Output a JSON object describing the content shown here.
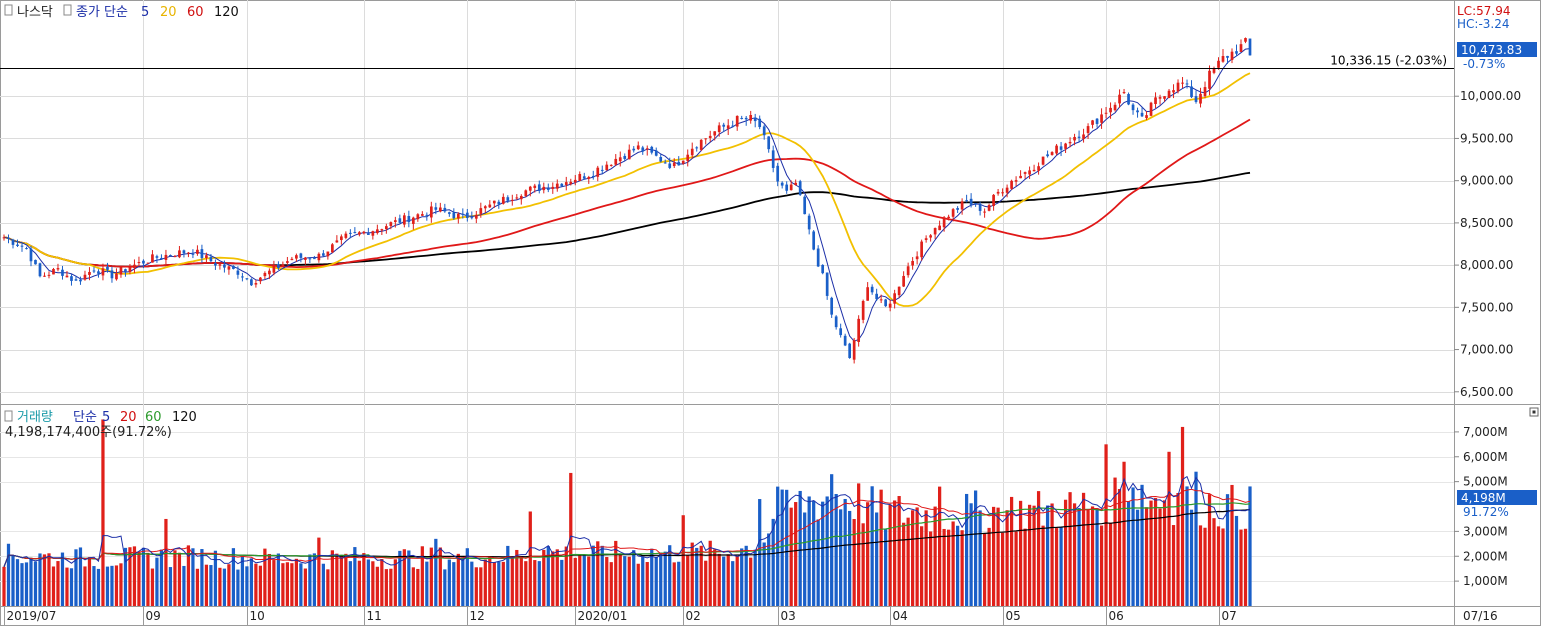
{
  "legend_price": {
    "name": "나스닥",
    "series_type": "종가 단순",
    "ma5": "5",
    "ma20": "20",
    "ma60": "60",
    "ma120": "120"
  },
  "legend_volume": {
    "name": "거래량",
    "series_type": "단순",
    "ma5": "5",
    "ma20": "20",
    "ma60": "60",
    "ma120": "120",
    "current": "4,198,174,400주(91.72%)"
  },
  "right_info": {
    "lc": "LC:57.94",
    "hc": "HC:-3.24",
    "last_price": "10,473.83",
    "last_change": "-0.73%",
    "last_volume": "4,198M",
    "last_volume_pct": "91.72%"
  },
  "ref_line": {
    "value": 10336.15,
    "label": "10,336.15 (-2.03%)"
  },
  "price_axis": {
    "min": 6450,
    "max": 10950,
    "ticks": [
      {
        "v": 10000,
        "label": "10,000.00"
      },
      {
        "v": 9500,
        "label": "9,500.00"
      },
      {
        "v": 9000,
        "label": "9,000.00"
      },
      {
        "v": 8500,
        "label": "8,500.00"
      },
      {
        "v": 8000,
        "label": "8,000.00"
      },
      {
        "v": 7500,
        "label": "7,500.00"
      },
      {
        "v": 7000,
        "label": "7,000.00"
      },
      {
        "v": 6500,
        "label": "6,500.00"
      }
    ]
  },
  "volume_axis": {
    "min": 0,
    "max": 7800,
    "ticks": [
      {
        "v": 7000,
        "label": "7,000M"
      },
      {
        "v": 6000,
        "label": "6,000M"
      },
      {
        "v": 5000,
        "label": "5,000M"
      },
      {
        "v": 3000,
        "label": "3,000M"
      },
      {
        "v": 2000,
        "label": "2,000M"
      },
      {
        "v": 1000,
        "label": "1,000M"
      }
    ]
  },
  "x_axis": {
    "ticks": [
      {
        "i": 0,
        "label": "2019/07"
      },
      {
        "i": 31,
        "label": "09"
      },
      {
        "i": 54,
        "label": "10"
      },
      {
        "i": 80,
        "label": "11"
      },
      {
        "i": 103,
        "label": "12"
      },
      {
        "i": 127,
        "label": "2020/01"
      },
      {
        "i": 151,
        "label": "02"
      },
      {
        "i": 172,
        "label": "03"
      },
      {
        "i": 197,
        "label": "04"
      },
      {
        "i": 222,
        "label": "05"
      },
      {
        "i": 245,
        "label": "06"
      },
      {
        "i": 270,
        "label": "07"
      }
    ],
    "right_label": "07/16"
  },
  "colors": {
    "up": "#e0201a",
    "down": "#1a5fc8",
    "ma5": "#1c2fa8",
    "ma20": "#f2c000",
    "ma60": "#e01818",
    "ma120": "#000000",
    "vma20": "#e01818",
    "vma60": "#2c9a2c",
    "vma120": "#000000",
    "legend_blue": "#1c2fa8",
    "legend_yellow": "#e8b400",
    "legend_red": "#d01010"
  },
  "chart_data": [
    {
      "type": "candlestick",
      "title": "나스닥",
      "ohlc_keypoints": [
        [
          0,
          8330
        ],
        [
          5,
          8200
        ],
        [
          8,
          7860
        ],
        [
          12,
          7950
        ],
        [
          16,
          7800
        ],
        [
          20,
          7960
        ],
        [
          24,
          7880
        ],
        [
          28,
          7980
        ],
        [
          33,
          8080
        ],
        [
          38,
          8140
        ],
        [
          42,
          8170
        ],
        [
          47,
          8020
        ],
        [
          52,
          7920
        ],
        [
          55,
          7800
        ],
        [
          60,
          7950
        ],
        [
          64,
          8080
        ],
        [
          70,
          8110
        ],
        [
          76,
          8330
        ],
        [
          82,
          8420
        ],
        [
          90,
          8560
        ],
        [
          96,
          8660
        ],
        [
          102,
          8560
        ],
        [
          108,
          8700
        ],
        [
          115,
          8870
        ],
        [
          122,
          8950
        ],
        [
          130,
          9080
        ],
        [
          136,
          9260
        ],
        [
          141,
          9390
        ],
        [
          145,
          9280
        ],
        [
          149,
          9170
        ],
        [
          153,
          9400
        ],
        [
          158,
          9580
        ],
        [
          163,
          9720
        ],
        [
          166,
          9730
        ],
        [
          168,
          9640
        ],
        [
          170,
          9330
        ],
        [
          172,
          8990
        ],
        [
          174,
          8850
        ],
        [
          176,
          8970
        ],
        [
          178,
          8590
        ],
        [
          180,
          8190
        ],
        [
          182,
          7860
        ],
        [
          184,
          7400
        ],
        [
          186,
          7150
        ],
        [
          188,
          6900
        ],
        [
          190,
          7330
        ],
        [
          192,
          7780
        ],
        [
          194,
          7600
        ],
        [
          196,
          7500
        ],
        [
          198,
          7650
        ],
        [
          200,
          7900
        ],
        [
          203,
          8150
        ],
        [
          206,
          8400
        ],
        [
          210,
          8600
        ],
        [
          214,
          8750
        ],
        [
          218,
          8650
        ],
        [
          221,
          8860
        ],
        [
          224,
          9000
        ],
        [
          227,
          9100
        ],
        [
          230,
          9220
        ],
        [
          234,
          9370
        ],
        [
          238,
          9530
        ],
        [
          241,
          9620
        ],
        [
          244,
          9780
        ],
        [
          247,
          9930
        ],
        [
          249,
          10050
        ],
        [
          251,
          9820
        ],
        [
          253,
          9710
        ],
        [
          256,
          9950
        ],
        [
          259,
          10100
        ],
        [
          262,
          10150
        ],
        [
          265,
          9950
        ],
        [
          268,
          10250
        ],
        [
          271,
          10450
        ],
        [
          274,
          10550
        ],
        [
          276,
          10630
        ],
        [
          277,
          10470
        ]
      ]
    },
    {
      "type": "bar",
      "title": "거래량",
      "ylabel": "M",
      "volume_keypoints": [
        [
          0,
          2200
        ],
        [
          20,
          2050
        ],
        [
          40,
          2150
        ],
        [
          60,
          2050
        ],
        [
          80,
          2100
        ],
        [
          100,
          2100
        ],
        [
          115,
          2200
        ],
        [
          120,
          2450
        ],
        [
          125,
          2250
        ],
        [
          140,
          2300
        ],
        [
          160,
          2300
        ],
        [
          168,
          2650
        ],
        [
          172,
          4000
        ],
        [
          178,
          4500
        ],
        [
          185,
          4800
        ],
        [
          190,
          4500
        ],
        [
          196,
          4000
        ],
        [
          202,
          4100
        ],
        [
          210,
          4000
        ],
        [
          220,
          4100
        ],
        [
          232,
          4150
        ],
        [
          240,
          4300
        ],
        [
          246,
          4700
        ],
        [
          250,
          5300
        ],
        [
          255,
          4700
        ],
        [
          262,
          4600
        ],
        [
          270,
          4300
        ],
        [
          277,
          4250
        ]
      ],
      "spikes": [
        [
          22,
          7500
        ],
        [
          36,
          3500
        ],
        [
          70,
          2750
        ],
        [
          96,
          2700
        ],
        [
          117,
          3800
        ],
        [
          126,
          5350
        ],
        [
          151,
          3650
        ],
        [
          168,
          4300
        ],
        [
          172,
          4800
        ],
        [
          184,
          5300
        ],
        [
          208,
          4800
        ],
        [
          245,
          6500
        ],
        [
          249,
          5800
        ],
        [
          259,
          6200
        ],
        [
          262,
          7200
        ],
        [
          265,
          5400
        ]
      ]
    }
  ]
}
